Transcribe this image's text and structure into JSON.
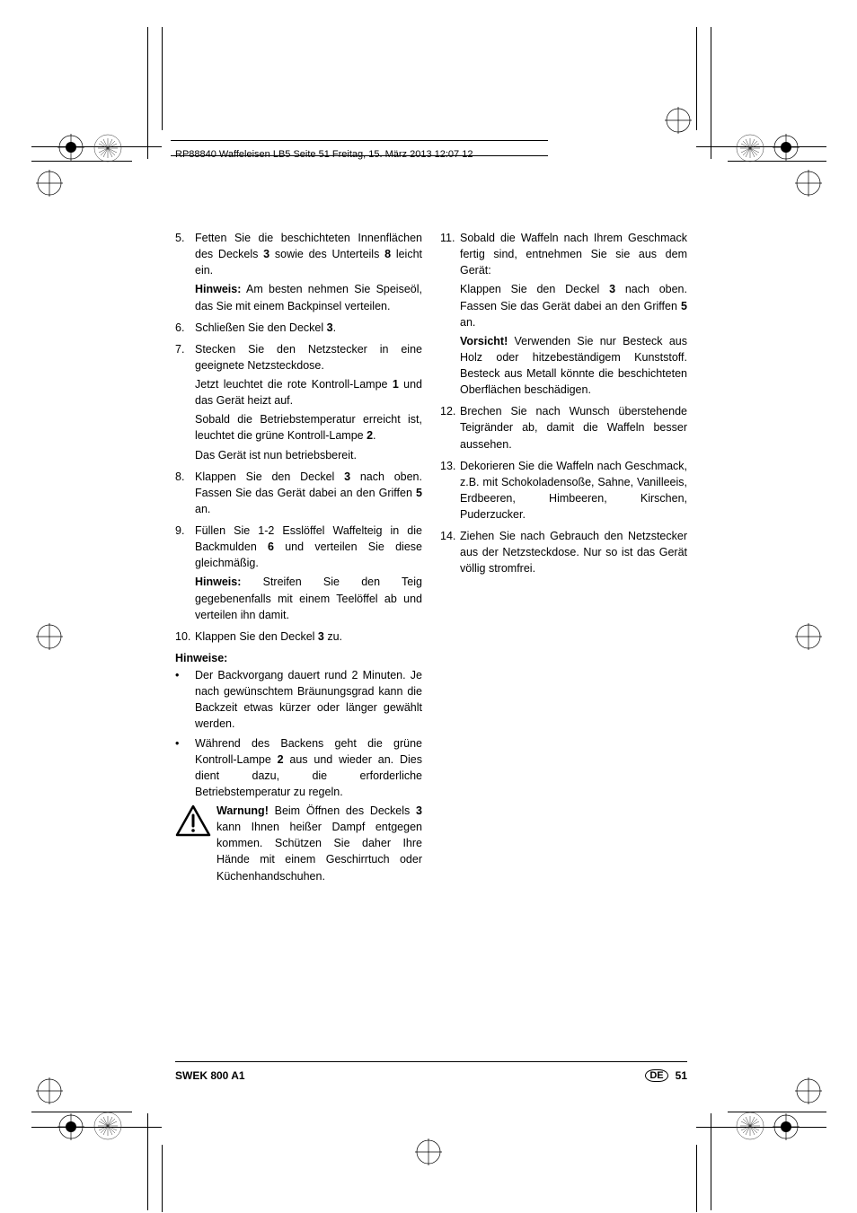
{
  "header": "RP88840 Waffeleisen LB5  Seite 51  Freitag, 15. März 2013  12:07 12",
  "footer": {
    "model": "SWEK 800 A1",
    "lang": "DE",
    "page": "51"
  },
  "left": {
    "items": [
      {
        "n": "5.",
        "p": [
          "Fetten Sie die beschichteten Innen­flächen des Deckels <b>3</b> sowie des Unterteils <b>8</b> leicht ein.",
          "<b>Hinweis:</b> Am besten nehmen Sie Speiseöl, das Sie mit einem Backpinsel verteilen."
        ]
      },
      {
        "n": "6.",
        "p": [
          "Schließen Sie den Deckel <b>3</b>."
        ]
      },
      {
        "n": "7.",
        "p": [
          "Stecken Sie den Netzstecker in eine geeignete Netzsteckdose.",
          "Jetzt leuchtet die rote Kontroll-Lampe <b>1</b> und das Gerät heizt auf.",
          "Sobald die Betriebstemperatur erreicht ist, leuchtet die grüne Kontroll-Lampe <b>2</b>.",
          "Das Gerät ist nun betriebsbereit."
        ]
      },
      {
        "n": "8.",
        "p": [
          "Klappen Sie den Deckel <b>3</b> nach oben. Fassen Sie das Gerät dabei an den Grif­fen <b>5</b> an."
        ]
      },
      {
        "n": "9.",
        "p": [
          "Füllen Sie 1-2 Esslöffel Waffelteig in die Backmulden <b>6</b> und verteilen Sie diese gleichmäßig.",
          "<b>Hinweis:</b> Streifen Sie den Teig gegebenenfalls mit einem Teelöffel ab und verteilen ihn damit."
        ]
      },
      {
        "n": "10.",
        "p": [
          "Klappen Sie den Deckel <b>3</b> zu."
        ]
      }
    ],
    "hinweiseHead": "Hinweise:",
    "bullets": [
      "Der Backvorgang dauert rund 2 Minuten. Je nach gewünschtem Bräunungsgrad kann die Backzeit etwas kürzer oder länger gewählt werden.",
      "Während des Backens geht die grüne Kontroll-Lampe <b>2</b> aus und wieder an. Dies dient dazu, die erforderliche Betriebstemperatur zu regeln."
    ],
    "warning": "<b>Warnung!</b> Beim Öffnen des Deckels <b>3</b> kann Ihnen heißer Dampf entgegen kommen. Schützen Sie daher Ihre Hände mit einem Geschirrtuch oder Küchenhand­schuhen."
  },
  "right": {
    "items": [
      {
        "n": "11.",
        "p": [
          "Sobald die Waffeln nach Ihrem Geschmack fertig sind, entnehmen Sie sie aus dem Gerät:",
          "Klappen Sie den Deckel <b>3</b> nach oben. Fassen Sie das Gerät dabei an den Griffen <b>5</b> an.",
          "<b>Vorsicht!</b> Verwenden Sie nur Besteck aus Holz oder hitzebeständigem Kunst­stoff. Besteck aus Metall könnte die beschichteten Oberflächen beschädigen."
        ]
      },
      {
        "n": "12.",
        "p": [
          "Brechen Sie nach Wunsch überstehende Teigränder ab, damit die Waffeln besser aussehen."
        ]
      },
      {
        "n": "13.",
        "p": [
          "Dekorieren Sie die Waffeln nach Geschmack, z.B. mit Schokoladensoße, Sahne, Vanilleeis, Erdbeeren, Himbee­ren, Kirschen, Puderzucker."
        ]
      },
      {
        "n": "14.",
        "p": [
          "Ziehen Sie nach Gebrauch den Netz­stecker aus der Netzsteckdose. Nur so ist das Gerät völlig stromfrei."
        ]
      }
    ]
  }
}
